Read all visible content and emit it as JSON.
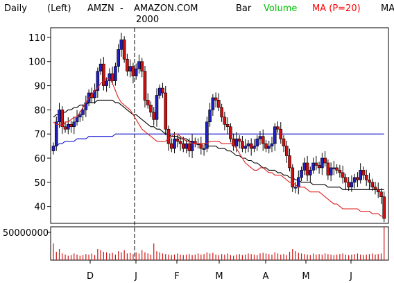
{
  "header": {
    "period": "Daily",
    "scale_side": "(Left)",
    "symbol": "AMZN",
    "dash": "-",
    "company": "AMAZON.COM",
    "year": "2000",
    "chart_style": "Bar",
    "volume_label": "Volume",
    "ma_label": "MA (P=20)",
    "ma_label_2": "MA",
    "colors": {
      "volume": "#00c000",
      "ma": "#ff0000",
      "ma2": "#000000"
    }
  },
  "colors": {
    "up_candle": "#2020c0",
    "down_candle": "#d01010",
    "ma20": "#e02020",
    "ma50": "#000000",
    "ma200": "#1a1ad0",
    "volume": "#d01010"
  },
  "chart_data": {
    "type": "candlestick",
    "price_axis": {
      "ticks": [
        "110",
        "100",
        "90",
        "80",
        "70",
        "60",
        "50",
        "40"
      ],
      "range": [
        33,
        114
      ]
    },
    "volume_axis": {
      "ticks": [
        "50000000"
      ],
      "range": [
        0,
        60000000
      ]
    },
    "x_labels": [
      "D",
      "J",
      "F",
      "M",
      "A",
      "M",
      "J"
    ],
    "year_divider_label": "2000",
    "closes": [
      65,
      75,
      80,
      73,
      72,
      74,
      73,
      75,
      77,
      78,
      80,
      83,
      87,
      85,
      88,
      96,
      99,
      90,
      92,
      95,
      92,
      98,
      105,
      109,
      101,
      96,
      98,
      94,
      97,
      100,
      96,
      84,
      82,
      79,
      76,
      86,
      89,
      87,
      72,
      66,
      64,
      68,
      67,
      66,
      64,
      66,
      63,
      67,
      66,
      66,
      64,
      64,
      75,
      80,
      85,
      84,
      81,
      77,
      74,
      73,
      68,
      65,
      68,
      67,
      64,
      65,
      66,
      64,
      65,
      68,
      69,
      66,
      64,
      65,
      66,
      73,
      72,
      68,
      65,
      61,
      56,
      48,
      48,
      52,
      55,
      58,
      53,
      55,
      58,
      57,
      56,
      60,
      58,
      53,
      56,
      56,
      55,
      54,
      52,
      50,
      48,
      50,
      52,
      51,
      55,
      53,
      51,
      50,
      48,
      47,
      46,
      44,
      35
    ],
    "ma20": [
      75,
      74,
      74,
      73,
      75,
      75,
      76,
      77,
      77,
      79,
      81,
      83,
      85,
      86,
      88,
      89,
      91,
      92,
      93,
      93,
      91,
      88,
      85,
      83,
      82,
      81,
      80,
      78,
      76,
      74,
      72,
      71,
      70,
      69,
      68,
      67,
      67,
      67,
      67,
      68,
      69,
      70,
      70,
      69,
      68,
      67,
      67,
      66,
      66,
      66,
      66,
      66,
      66,
      67,
      67,
      67,
      67,
      66,
      66,
      66,
      66,
      66,
      64,
      62,
      60,
      58,
      57,
      56,
      55,
      55,
      56,
      56,
      55,
      54,
      54,
      53,
      53,
      53,
      52,
      51,
      50,
      50,
      49,
      48,
      48,
      48,
      47,
      46,
      46,
      46,
      46,
      45,
      44,
      43,
      42,
      41,
      41,
      40,
      39,
      39,
      39,
      39,
      39,
      39,
      38,
      38,
      38,
      38,
      37,
      37,
      37,
      36,
      36
    ],
    "ma50": [
      77,
      78,
      78,
      79,
      79,
      80,
      80,
      81,
      81,
      82,
      82,
      82,
      83,
      83,
      83,
      84,
      84,
      84,
      84,
      84,
      84,
      83,
      83,
      82,
      81,
      80,
      79,
      78,
      78,
      77,
      76,
      75,
      74,
      73,
      73,
      72,
      72,
      71,
      70,
      70,
      69,
      69,
      69,
      68,
      68,
      68,
      67,
      67,
      66,
      66,
      66,
      66,
      65,
      65,
      65,
      65,
      64,
      64,
      64,
      63,
      63,
      62,
      61,
      61,
      60,
      60,
      59,
      59,
      58,
      58,
      57,
      56,
      56,
      55,
      55,
      55,
      54,
      54,
      53,
      53,
      52,
      52,
      51,
      51,
      50,
      50,
      50,
      50,
      49,
      49,
      49,
      49,
      49,
      48,
      48,
      48,
      48,
      48,
      47,
      47,
      47,
      47,
      47,
      47,
      47,
      47,
      47,
      47,
      47,
      47,
      47,
      47,
      47
    ],
    "ma200": [
      65,
      65,
      66,
      66,
      67,
      67,
      67,
      67,
      68,
      68,
      68,
      68,
      69,
      69,
      69,
      69,
      69,
      69,
      69,
      69,
      69,
      70,
      70,
      70,
      70,
      70,
      70,
      70,
      70,
      70,
      70,
      70,
      70,
      70,
      70,
      70,
      70,
      70,
      70,
      70,
      70,
      70,
      70,
      70,
      70,
      70,
      70,
      70,
      70,
      70,
      70,
      70,
      70,
      70,
      70,
      70,
      70,
      70,
      70,
      70,
      70,
      70,
      70,
      70,
      70,
      70,
      70,
      70,
      70,
      70,
      70,
      70,
      70,
      70,
      70,
      70,
      70,
      70,
      70,
      70,
      70,
      70,
      70,
      70,
      70,
      70,
      70,
      70,
      70,
      70,
      70,
      70,
      70,
      70,
      70,
      70,
      70,
      70,
      70,
      70,
      70,
      70,
      70,
      70,
      70,
      70,
      70,
      70,
      70,
      70,
      70,
      70,
      70
    ],
    "volume": [
      30,
      15,
      20,
      12,
      10,
      8,
      9,
      12,
      10,
      8,
      9,
      11,
      10,
      12,
      9,
      20,
      18,
      15,
      14,
      12,
      13,
      10,
      16,
      14,
      18,
      12,
      13,
      11,
      14,
      12,
      18,
      14,
      12,
      10,
      30,
      16,
      14,
      12,
      11,
      10,
      9,
      10,
      12,
      10,
      9,
      10,
      11,
      9,
      10,
      12,
      10,
      11,
      14,
      12,
      13,
      10,
      9,
      11,
      10,
      12,
      9,
      8,
      10,
      11,
      9,
      10,
      12,
      11,
      10,
      9,
      12,
      13,
      12,
      11,
      10,
      14,
      12,
      10,
      11,
      9,
      15,
      20,
      16,
      13,
      12,
      11,
      10,
      9,
      12,
      10,
      11,
      10,
      12,
      11,
      10,
      9,
      10,
      11,
      12,
      10,
      9,
      10,
      11,
      12,
      10,
      9,
      10,
      11,
      12,
      10,
      11,
      12,
      60
    ]
  }
}
